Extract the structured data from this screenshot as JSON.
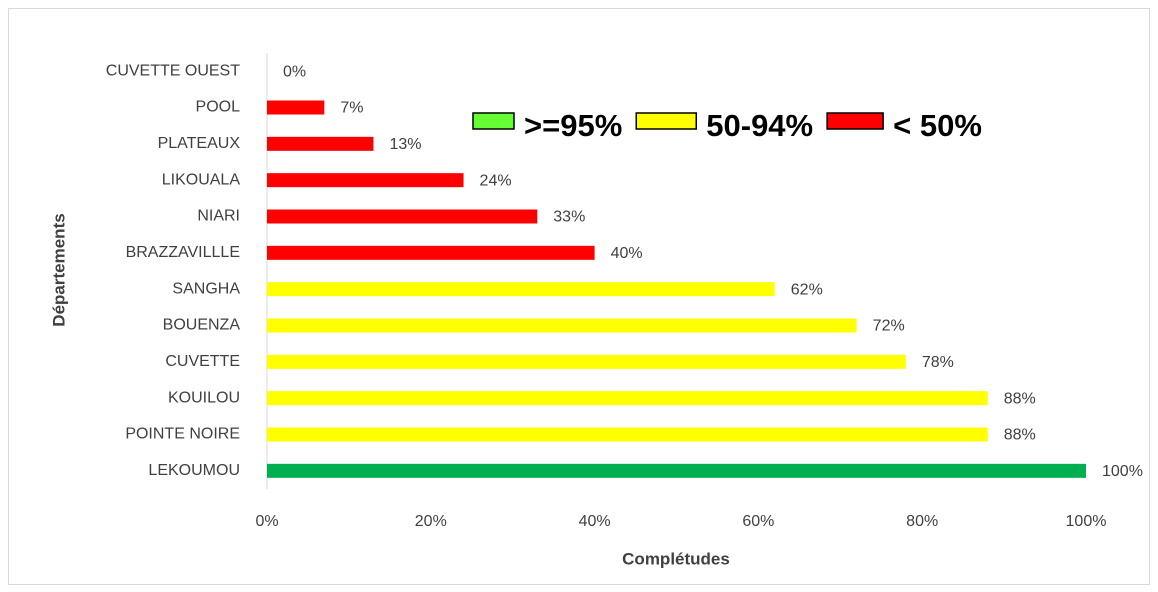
{
  "chart_data": {
    "type": "barh",
    "x_label": "Complétudes",
    "y_label": "Départements",
    "categories": [
      "CUVETTE OUEST",
      "POOL",
      "PLATEAUX",
      "LIKOUALA",
      "NIARI",
      "BRAZZAVILLLE",
      "SANGHA",
      "BOUENZA",
      "CUVETTE",
      "KOUILOU",
      "POINTE NOIRE",
      "LEKOUMOU"
    ],
    "values": [
      0,
      7,
      13,
      24,
      33,
      40,
      62,
      72,
      78,
      88,
      88,
      100
    ],
    "value_labels": [
      "0%",
      "7%",
      "13%",
      "24%",
      "33%",
      "40%",
      "62%",
      "72%",
      "78%",
      "88%",
      "88%",
      "100%"
    ],
    "colors": [
      "#ff0000",
      "#ff0000",
      "#ff0000",
      "#ff0000",
      "#ff0000",
      "#ff0000",
      "#ffff00",
      "#ffff00",
      "#ffff00",
      "#ffff00",
      "#ffff00",
      "#00b050"
    ],
    "xlim": [
      0,
      100
    ],
    "xticks": [
      {
        "value": 0,
        "label": "0%"
      },
      {
        "value": 20,
        "label": "20%"
      },
      {
        "value": 40,
        "label": "40%"
      },
      {
        "value": 60,
        "label": "60%"
      },
      {
        "value": 80,
        "label": "80%"
      },
      {
        "value": 100,
        "label": "100%"
      }
    ],
    "grid": false,
    "legend": [
      {
        "label": ">=95%",
        "color": "#66ff33"
      },
      {
        "label": "50-94%",
        "color": "#ffff00"
      },
      {
        "label": "< 50%",
        "color": "#ff0000"
      }
    ]
  }
}
